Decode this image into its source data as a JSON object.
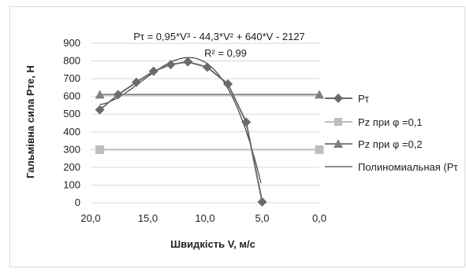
{
  "chart_data": {
    "type": "line",
    "title": "",
    "xlabel": "Швидкість V, м/с",
    "ylabel": "Гальмівна сила Рте, Н",
    "x_reversed": true,
    "xlim": [
      0,
      20
    ],
    "ylim": [
      0,
      900
    ],
    "xticks": [
      "20,0",
      "15,0",
      "10,0",
      "5,0",
      "0,0"
    ],
    "yticks": [
      "0",
      "100",
      "200",
      "300",
      "400",
      "500",
      "600",
      "700",
      "800",
      "900"
    ],
    "grid": "horizontal",
    "legend_position": "right",
    "annotation": {
      "equation": "Pτ = 0,95*V³ - 44,3*V² + 640*V - 2127",
      "r2": "R² = 0,99"
    },
    "series": [
      {
        "name": "Pτ",
        "color": "#6b6b6b",
        "marker": "diamond",
        "x": [
          19.2,
          17.6,
          16.0,
          14.5,
          13.0,
          11.5,
          9.8,
          8.0,
          6.4,
          5.0
        ],
        "y": [
          525,
          610,
          680,
          742,
          780,
          795,
          765,
          670,
          455,
          5
        ]
      },
      {
        "name": "Pz при φ =0,1",
        "color": "#bdbdbd",
        "marker": "square",
        "x": [
          19.2,
          0
        ],
        "y": [
          300,
          300
        ]
      },
      {
        "name": "Pz при φ =0,2",
        "color": "#808080",
        "marker": "triangle",
        "x": [
          19.2,
          0
        ],
        "y": [
          610,
          610
        ]
      },
      {
        "name": "Полиномиальная (Pτ",
        "color": "#222222",
        "marker": "none",
        "trendline": true
      }
    ]
  }
}
